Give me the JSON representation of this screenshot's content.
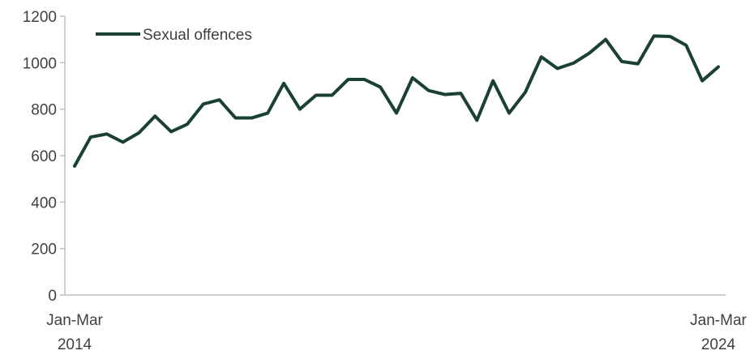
{
  "chart_data": {
    "type": "line",
    "title": "",
    "xlabel": "",
    "ylabel": "",
    "ylim": [
      0,
      1200
    ],
    "yticks": [
      0,
      200,
      400,
      600,
      800,
      1000,
      1200
    ],
    "x_tick_labels": [
      {
        "line1": "Jan-Mar",
        "line2": "2014"
      },
      {
        "line1": "Jan-Mar",
        "line2": "2024"
      }
    ],
    "legend": {
      "position": "top-left"
    },
    "grid": false,
    "color": "#1a4034",
    "series": [
      {
        "name": "Sexual offences",
        "values": [
          555,
          680,
          693,
          658,
          698,
          770,
          703,
          735,
          822,
          840,
          762,
          762,
          783,
          911,
          800,
          860,
          860,
          928,
          928,
          895,
          783,
          935,
          880,
          863,
          868,
          752,
          922,
          783,
          872,
          1025,
          975,
          998,
          1042,
          1100,
          1005,
          995,
          1115,
          1113,
          1075,
          922,
          982
        ]
      }
    ]
  }
}
